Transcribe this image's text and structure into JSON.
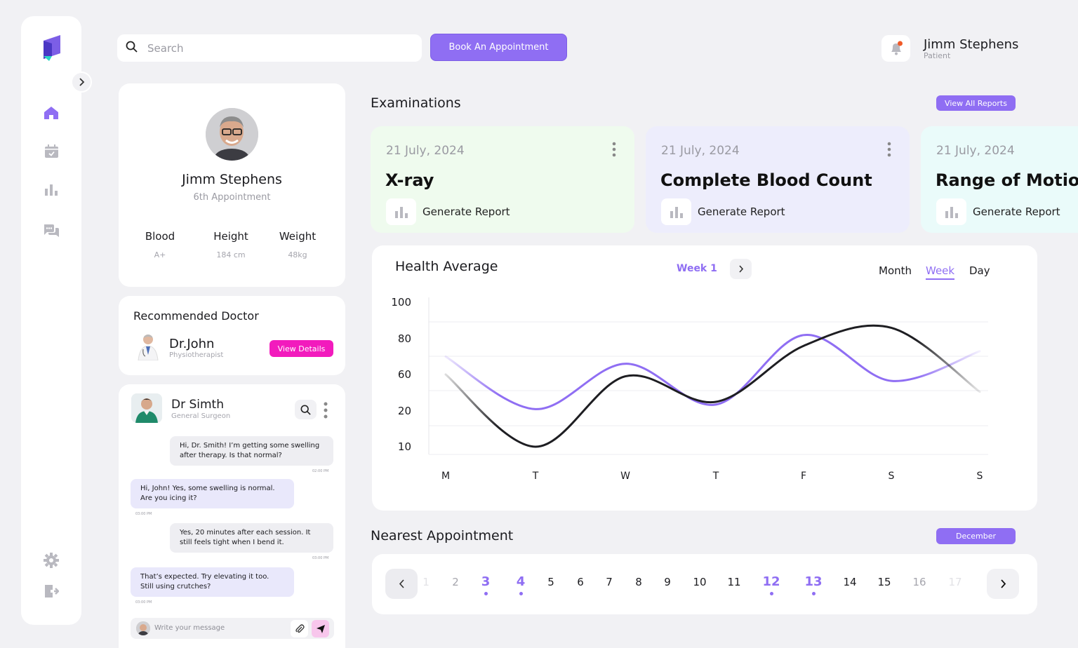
{
  "colors": {
    "accent": "#8f6ef3",
    "pink": "#f21bbd",
    "dark_line": "#1e1e22",
    "card_green": "#effbee",
    "card_purple": "#ededfc",
    "card_cyan": "#eafbfa"
  },
  "search": {
    "placeholder": "Search"
  },
  "header": {
    "book_label": "Book An Appointment",
    "user_name": "Jimm Stephens",
    "user_role": "Patient"
  },
  "profile": {
    "name": "Jimm Stephens",
    "appointment": "6th Appointment",
    "stats": [
      {
        "label": "Blood",
        "value": "A+"
      },
      {
        "label": "Height",
        "value": "184 cm"
      },
      {
        "label": "Weight",
        "value": "48kg"
      }
    ]
  },
  "recommended": {
    "title": "Recommended Doctor",
    "doctor_name": "Dr.John",
    "doctor_spec": "Physiotherapist",
    "button": "View Details"
  },
  "chat": {
    "doctor_name": "Dr Simth",
    "doctor_spec": "General Surgeon",
    "messages": [
      {
        "text": "Hi, Dr. Smith! I’m getting some swelling after therapy. Is that normal?",
        "time": "02:00 PM"
      },
      {
        "text": "Hi, John! Yes, some swelling is normal. Are you icing it?",
        "time": "03:00 PM"
      },
      {
        "text": "Yes, 20 minutes after each session. It still feels tight when I bend it.",
        "time": "03:00 PM"
      },
      {
        "text": "That’s expected. Try elevating it too. Still using crutches?",
        "time": "03:00 PM"
      }
    ],
    "composer_placeholder": "Write your message"
  },
  "examinations": {
    "title": "Examinations",
    "view_all": "View All Reports",
    "cards": [
      {
        "date": "21 July, 2024",
        "title": "X-ray",
        "action": "Generate Report"
      },
      {
        "date": "21 July, 2024",
        "title": "Complete Blood Count",
        "action": "Generate Report"
      },
      {
        "date": "21 July, 2024",
        "title": "Range of Motion",
        "action": "Generate Report"
      }
    ]
  },
  "health": {
    "title": "Health Average",
    "week_label": "Week 1",
    "tabs": [
      "Month",
      "Week",
      "Day"
    ],
    "active_tab": "Week"
  },
  "chart_data": {
    "type": "line",
    "title": "Health Average",
    "xlabel": "",
    "ylabel": "",
    "categories": [
      "M",
      "T",
      "W",
      "T",
      "F",
      "S",
      "S"
    ],
    "y_ticks": [
      "100",
      "80",
      "60",
      "20",
      "10"
    ],
    "grid": true,
    "series": [
      {
        "color": "#8f6ef3",
        "values": [
          70,
          22,
          66,
          27,
          82,
          53,
          73
        ]
      },
      {
        "color": "#1e1e22",
        "values": [
          60,
          10,
          58,
          30,
          76,
          86,
          41
        ]
      }
    ]
  },
  "appointments": {
    "title": "Nearest Appointment",
    "month": "December",
    "days": [
      {
        "n": "1",
        "state": "faded"
      },
      {
        "n": "2",
        "state": "muted"
      },
      {
        "n": "3",
        "state": "hl"
      },
      {
        "n": "4",
        "state": "hl"
      },
      {
        "n": "5",
        "state": "normal"
      },
      {
        "n": "6",
        "state": "normal"
      },
      {
        "n": "7",
        "state": "normal"
      },
      {
        "n": "8",
        "state": "normal"
      },
      {
        "n": "9",
        "state": "normal"
      },
      {
        "n": "10",
        "state": "normal"
      },
      {
        "n": "11",
        "state": "normal"
      },
      {
        "n": "12",
        "state": "hl"
      },
      {
        "n": "13",
        "state": "hl"
      },
      {
        "n": "14",
        "state": "normal"
      },
      {
        "n": "15",
        "state": "normal"
      },
      {
        "n": "16",
        "state": "muted"
      },
      {
        "n": "17",
        "state": "faded"
      }
    ]
  }
}
